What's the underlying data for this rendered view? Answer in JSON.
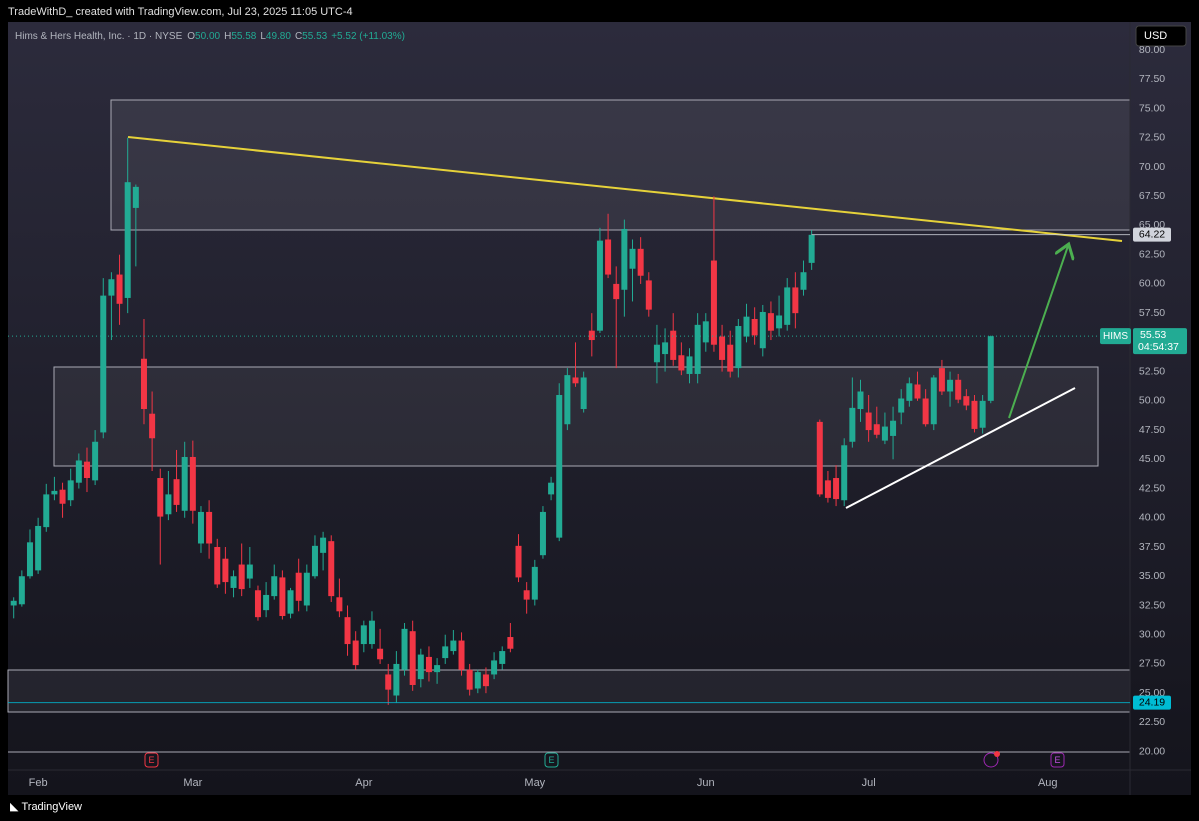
{
  "header": {
    "credit": "TradeWithD_ created with TradingView.com, Jul 23, 2025 11:05 UTC-4",
    "currency": "USD",
    "footer": "TradingView"
  },
  "legend": {
    "instrument": "Hims & Hers Health, Inc. · 1D · NYSE",
    "o_key": "O",
    "o": "50.00",
    "h_key": "H",
    "h": "55.58",
    "l_key": "L",
    "l": "49.80",
    "c_key": "C",
    "c": "55.53",
    "change": "+5.52 (+11.03%)"
  },
  "events": [
    "E",
    "E",
    "E"
  ],
  "chart_data": {
    "type": "candlestick",
    "up_color": "#22ab94",
    "down_color": "#f23645",
    "open": [
      32.5,
      32.6,
      35.0,
      35.5,
      39.2,
      42.0,
      42.4,
      41.5,
      43.0,
      44.8,
      43.2,
      47.3,
      59.0,
      60.8,
      58.8,
      66.5,
      53.6,
      48.9,
      43.4,
      40.3,
      43.3,
      40.6,
      45.2,
      37.8,
      40.5,
      37.5,
      36.5,
      34.0,
      36.0,
      34.8,
      33.8,
      32.1,
      33.3,
      34.9,
      31.8,
      35.3,
      32.5,
      35.0,
      37.0,
      38.0,
      33.2,
      31.5,
      29.5,
      29.2,
      29.2,
      28.8,
      26.6,
      24.8,
      27.0,
      30.3,
      26.2,
      28.1,
      26.8,
      28.0,
      28.6,
      29.5,
      27.0,
      25.4,
      26.6,
      26.6,
      27.5,
      29.8,
      37.6,
      33.8,
      33.0,
      36.8,
      42.0,
      38.3,
      48.0,
      52.0,
      49.3,
      56.0,
      56.0,
      63.8,
      60.0,
      59.5,
      61.3,
      63.0,
      60.3,
      53.3,
      54.0,
      56.0,
      53.9,
      52.3,
      52.3,
      55.0,
      62.0,
      55.5,
      54.8,
      52.8,
      55.5,
      57.0,
      54.5,
      57.5,
      56.2,
      56.5,
      59.7,
      59.5,
      61.8,
      48.2,
      43.2,
      43.4,
      41.5,
      46.5,
      49.3,
      49.0,
      48.0,
      46.6,
      47.0,
      49.0,
      50.0,
      51.4,
      50.2,
      48.0,
      52.8,
      50.8,
      51.8,
      50.4,
      50.0,
      47.7,
      50.0
    ],
    "high": [
      33.2,
      35.5,
      39.0,
      40.0,
      42.9,
      43.5,
      43.0,
      44.2,
      45.5,
      46.0,
      47.5,
      60.5,
      61.0,
      62.5,
      72.5,
      68.5,
      57.0,
      50.8,
      44.2,
      44.0,
      45.8,
      46.5,
      46.6,
      41.0,
      41.5,
      38.2,
      37.5,
      35.5,
      37.8,
      37.5,
      34.2,
      34.5,
      36.0,
      35.5,
      34.0,
      36.5,
      36.0,
      38.5,
      38.8,
      38.5,
      34.8,
      32.5,
      30.3,
      31.2,
      32.0,
      30.5,
      27.5,
      28.6,
      31.0,
      31.2,
      28.8,
      29.0,
      28.0,
      30.0,
      30.4,
      30.2,
      27.5,
      27.0,
      27.2,
      28.5,
      29.0,
      31.0,
      38.6,
      34.5,
      36.4,
      41.0,
      43.5,
      51.5,
      52.8,
      55.0,
      52.5,
      57.5,
      64.8,
      66.0,
      61.5,
      65.5,
      63.8,
      64.0,
      61.0,
      56.5,
      56.2,
      57.5,
      55.0,
      54.5,
      57.5,
      57.5,
      67.5,
      56.5,
      56.0,
      57.0,
      58.3,
      58.0,
      58.2,
      58.5,
      59.0,
      60.5,
      61.0,
      62.0,
      64.6,
      48.4,
      44.0,
      44.5,
      46.8,
      52.0,
      51.8,
      50.5,
      49.5,
      49.0,
      49.5,
      51.0,
      52.0,
      52.5,
      51.0,
      52.2,
      53.5,
      52.5,
      52.3,
      51.0,
      50.5,
      50.5,
      55.58
    ],
    "low": [
      31.4,
      32.4,
      34.8,
      35.2,
      38.8,
      41.5,
      40.0,
      41.0,
      42.5,
      42.2,
      42.8,
      46.8,
      55.2,
      56.5,
      57.5,
      61.5,
      48.0,
      44.0,
      36.0,
      39.8,
      40.5,
      40.0,
      39.5,
      37.0,
      36.5,
      34.0,
      33.5,
      33.2,
      33.3,
      34.0,
      31.2,
      31.5,
      33.0,
      31.3,
      31.4,
      32.0,
      32.0,
      34.8,
      35.5,
      32.8,
      31.5,
      28.2,
      27.0,
      28.5,
      28.8,
      27.5,
      24.0,
      24.2,
      26.5,
      25.2,
      25.5,
      26.0,
      25.8,
      27.5,
      28.3,
      26.5,
      24.8,
      25.0,
      25.0,
      26.2,
      27.0,
      28.5,
      34.5,
      31.8,
      32.5,
      36.5,
      41.5,
      38.0,
      47.5,
      51.2,
      49.0,
      53.8,
      55.8,
      60.5,
      52.8,
      57.2,
      58.5,
      60.0,
      57.2,
      51.5,
      52.5,
      53.0,
      52.2,
      51.5,
      51.5,
      54.2,
      54.2,
      52.5,
      52.0,
      52.0,
      55.0,
      54.8,
      53.8,
      55.2,
      55.5,
      56.0,
      56.2,
      59.0,
      61.2,
      41.8,
      41.3,
      41.0,
      41.0,
      46.0,
      48.2,
      46.5,
      46.8,
      46.3,
      45.0,
      48.0,
      49.5,
      50.0,
      47.8,
      47.5,
      50.5,
      49.5,
      49.8,
      49.2,
      47.3,
      47.2,
      49.8
    ],
    "close": [
      32.9,
      35.0,
      37.9,
      39.3,
      42.0,
      42.3,
      41.2,
      43.2,
      44.9,
      43.4,
      46.5,
      59.0,
      60.4,
      58.3,
      68.7,
      68.3,
      49.3,
      46.8,
      40.1,
      42.0,
      41.1,
      45.2,
      40.6,
      40.5,
      37.8,
      34.3,
      34.5,
      35.0,
      33.9,
      36.0,
      31.5,
      33.4,
      35.0,
      31.6,
      33.8,
      32.9,
      35.3,
      37.6,
      38.3,
      33.3,
      32.0,
      29.2,
      27.4,
      30.8,
      31.2,
      27.9,
      25.3,
      27.5,
      30.5,
      25.7,
      28.3,
      26.8,
      27.4,
      29.0,
      29.5,
      27.0,
      25.3,
      26.8,
      25.6,
      27.8,
      28.6,
      28.8,
      34.9,
      33.0,
      35.8,
      40.5,
      43.0,
      50.5,
      52.2,
      51.5,
      52.0,
      55.2,
      63.7,
      60.8,
      58.7,
      64.7,
      63.0,
      60.7,
      57.8,
      54.8,
      55.0,
      53.5,
      52.6,
      53.8,
      56.5,
      56.8,
      54.8,
      53.5,
      52.5,
      56.4,
      57.2,
      55.6,
      57.6,
      56.0,
      57.3,
      59.7,
      57.5,
      61.0,
      64.2,
      42.0,
      41.7,
      41.6,
      46.2,
      49.4,
      50.8,
      47.5,
      47.1,
      47.8,
      48.3,
      50.2,
      51.5,
      50.2,
      48.0,
      52.0,
      50.8,
      51.8,
      50.1,
      49.6,
      47.6,
      50.0,
      55.53
    ],
    "xlim": [
      -0.7,
      137.1
    ],
    "xticks": [
      {
        "value": 3,
        "label": "Feb"
      },
      {
        "value": 22,
        "label": "Mar"
      },
      {
        "value": 43,
        "label": "Apr"
      },
      {
        "value": 64,
        "label": "May"
      },
      {
        "value": 85,
        "label": "Jun"
      },
      {
        "value": 105,
        "label": "Jul"
      },
      {
        "value": 127,
        "label": "Aug"
      }
    ],
    "ylim": [
      18.6,
      82.4
    ],
    "yticks": [
      {
        "value": 20,
        "label": "20.00"
      },
      {
        "value": 22.5,
        "label": "22.50"
      },
      {
        "value": 25,
        "label": "25.00"
      },
      {
        "value": 27.5,
        "label": "27.50"
      },
      {
        "value": 30,
        "label": "30.00"
      },
      {
        "value": 32.5,
        "label": "32.50"
      },
      {
        "value": 35,
        "label": "35.00"
      },
      {
        "value": 37.5,
        "label": "37.50"
      },
      {
        "value": 40,
        "label": "40.00"
      },
      {
        "value": 42.5,
        "label": "42.50"
      },
      {
        "value": 45,
        "label": "45.00"
      },
      {
        "value": 47.5,
        "label": "47.50"
      },
      {
        "value": 50,
        "label": "50.00"
      },
      {
        "value": 52.5,
        "label": "52.50"
      },
      {
        "value": 55,
        "label": "55.00"
      },
      {
        "value": 57.5,
        "label": "57.50"
      },
      {
        "value": 60,
        "label": "60.00"
      },
      {
        "value": 62.5,
        "label": "62.50"
      },
      {
        "value": 65,
        "label": "65.00"
      },
      {
        "value": 67.5,
        "label": "67.50"
      },
      {
        "value": 70,
        "label": "70.00"
      },
      {
        "value": 72.5,
        "label": "72.50"
      },
      {
        "value": 75,
        "label": "75.00"
      },
      {
        "value": 77.5,
        "label": "77.50"
      },
      {
        "value": 80,
        "label": "80.00"
      }
    ],
    "price_lines": [
      {
        "value": 64.22,
        "label": "64.22",
        "color": "#d1d4dc"
      },
      {
        "value": 24.19,
        "label": "24.19",
        "color": "#00bcd4"
      }
    ],
    "last": {
      "symbol": "HIMS",
      "value": 55.53,
      "label": "55.53",
      "countdown": "04:54:37",
      "color": "#22ab94"
    }
  }
}
